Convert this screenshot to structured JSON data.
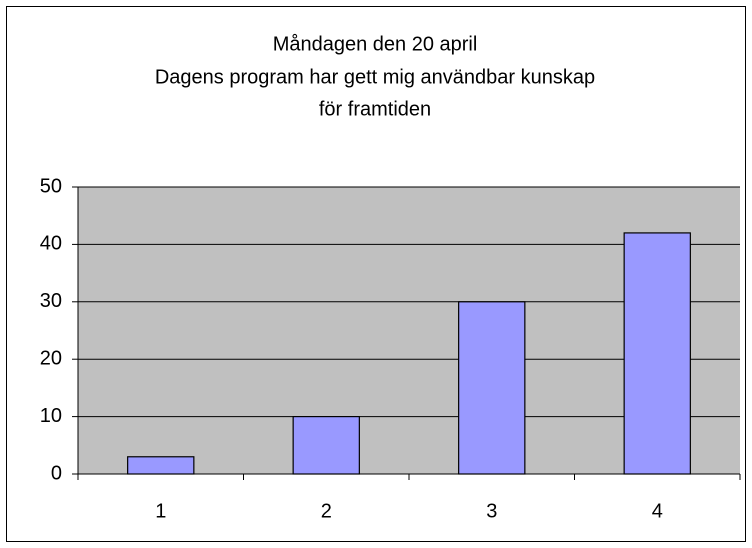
{
  "chart_data": {
    "type": "bar",
    "title": [
      "Måndagen den 20 april",
      "Dagens program har gett mig användbar kunskap",
      "för framtiden"
    ],
    "categories": [
      "1",
      "2",
      "3",
      "4"
    ],
    "values": [
      3,
      10,
      30,
      42
    ],
    "color": "#9999ff",
    "ylim": [
      0,
      50
    ],
    "yticks": [
      0,
      10,
      20,
      30,
      40,
      50
    ],
    "grid": true
  }
}
